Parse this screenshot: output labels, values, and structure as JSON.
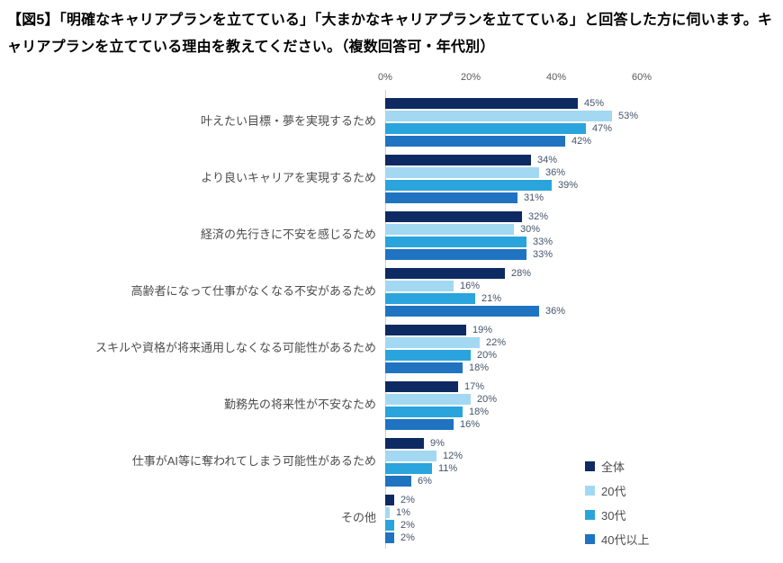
{
  "title": "【図5】「明確なキャリアプランを立てている」「大まかなキャリアプランを立てている」と回答した方に伺います。キャリアプランを立てている理由を教えてください。（複数回答可・年代別）",
  "chart_data": {
    "type": "bar",
    "orientation": "horizontal",
    "title": "キャリアプランを立てている理由（複数回答可・年代別）",
    "categories": [
      "叶えたい目標・夢を実現するため",
      "より良いキャリアを実現するため",
      "経済の先行きに不安を感じるため",
      "高齢者になって仕事がなくなる不安があるため",
      "スキルや資格が将来通用しなくなる可能性があるため",
      "勤務先の将来性が不安なため",
      "仕事がAI等に奪われてしまう可能性があるため",
      "その他"
    ],
    "series": [
      {
        "name": "全体",
        "color": "#0e2a63",
        "values": [
          45,
          34,
          32,
          28,
          19,
          17,
          9,
          2
        ]
      },
      {
        "name": "20代",
        "color": "#a3d8f2",
        "values": [
          53,
          36,
          30,
          16,
          22,
          20,
          12,
          1
        ]
      },
      {
        "name": "30代",
        "color": "#2aa4dc",
        "values": [
          47,
          39,
          33,
          21,
          20,
          18,
          11,
          2
        ]
      },
      {
        "name": "40代以上",
        "color": "#1f73c1",
        "values": [
          42,
          31,
          33,
          36,
          18,
          16,
          6,
          2
        ]
      }
    ],
    "value_suffix": "%",
    "xlim": [
      0,
      60
    ],
    "x_ticks": [
      "0%",
      "20%",
      "40%",
      "60%"
    ],
    "axis_position": "top",
    "grid": false,
    "legend_position": "bottom-right",
    "colors": {
      "axis_line": "#c9cdd2",
      "tick_label": "#595959",
      "category_label": "#4d4d4d",
      "value_label": "#44546a",
      "title_text": "#000000",
      "background": "#ffffff"
    }
  }
}
